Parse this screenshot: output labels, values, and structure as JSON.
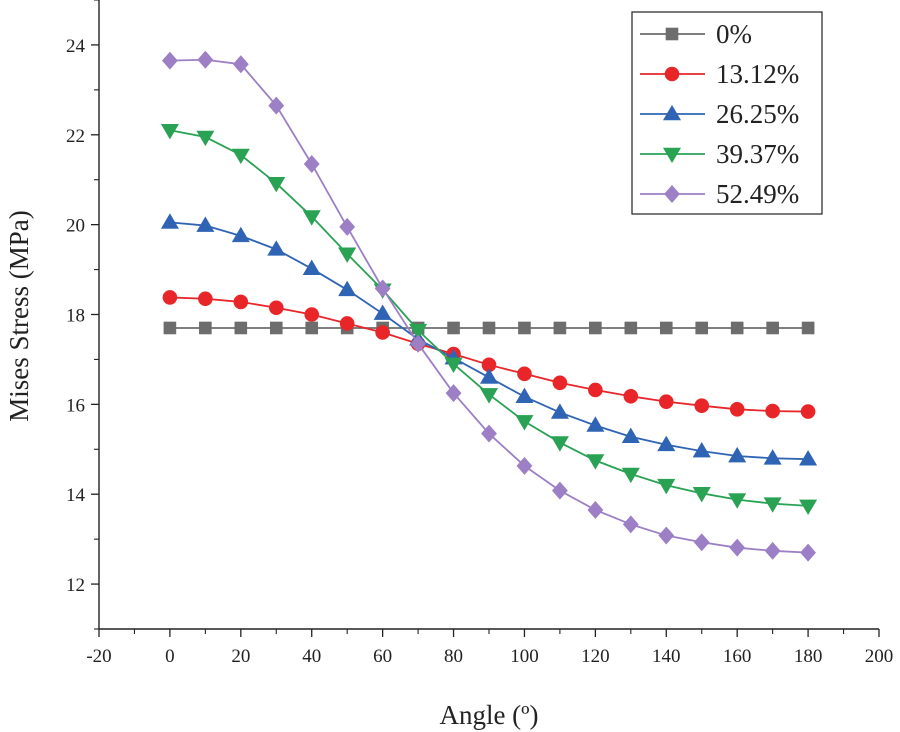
{
  "chart_data": {
    "type": "line",
    "title": "",
    "xlabel": "Angle (º)",
    "ylabel": "Mises Stress (MPa)",
    "xlim": [
      -20,
      200
    ],
    "ylim": [
      11,
      25
    ],
    "x_ticks": [
      -20,
      0,
      20,
      40,
      60,
      80,
      100,
      120,
      140,
      160,
      180,
      200
    ],
    "y_ticks": [
      12,
      14,
      16,
      18,
      20,
      22,
      24
    ],
    "grid": false,
    "legend_position": "top-right",
    "x": [
      0,
      10,
      20,
      30,
      40,
      50,
      60,
      70,
      80,
      90,
      100,
      110,
      120,
      130,
      140,
      150,
      160,
      170,
      180
    ],
    "series": [
      {
        "name": "0%",
        "color": "#6d6d6d",
        "marker": "square",
        "values": [
          17.7,
          17.7,
          17.7,
          17.7,
          17.7,
          17.7,
          17.7,
          17.7,
          17.7,
          17.7,
          17.7,
          17.7,
          17.7,
          17.7,
          17.7,
          17.7,
          17.7,
          17.7,
          17.7
        ]
      },
      {
        "name": "13.12%",
        "color": "#e8262a",
        "marker": "circle",
        "values": [
          18.38,
          18.35,
          18.28,
          18.15,
          18.0,
          17.8,
          17.6,
          17.35,
          17.12,
          16.88,
          16.68,
          16.48,
          16.32,
          16.18,
          16.06,
          15.97,
          15.89,
          15.85,
          15.84
        ]
      },
      {
        "name": "26.25%",
        "color": "#2f64b4",
        "marker": "triangle-up",
        "values": [
          20.05,
          19.98,
          19.75,
          19.45,
          19.02,
          18.55,
          18.02,
          17.45,
          17.03,
          16.6,
          16.17,
          15.82,
          15.53,
          15.28,
          15.1,
          14.96,
          14.85,
          14.8,
          14.78
        ]
      },
      {
        "name": "39.37%",
        "color": "#2aa254",
        "marker": "triangle-down",
        "values": [
          22.1,
          21.95,
          21.55,
          20.92,
          20.18,
          19.35,
          18.55,
          17.65,
          16.9,
          16.22,
          15.62,
          15.15,
          14.75,
          14.45,
          14.2,
          14.02,
          13.88,
          13.79,
          13.74
        ]
      },
      {
        "name": "52.49%",
        "color": "#9c7fc5",
        "marker": "diamond",
        "values": [
          23.65,
          23.67,
          23.57,
          22.65,
          21.35,
          19.95,
          18.58,
          17.35,
          16.25,
          15.35,
          14.63,
          14.08,
          13.65,
          13.33,
          13.08,
          12.93,
          12.81,
          12.74,
          12.7
        ]
      }
    ]
  }
}
